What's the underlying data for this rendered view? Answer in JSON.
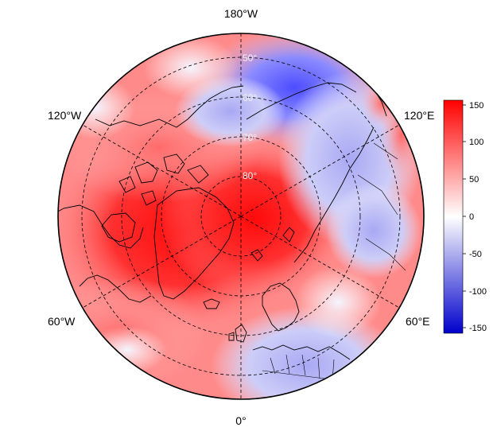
{
  "map": {
    "projection": "north-polar-stereographic",
    "longitude_labels": {
      "top": "180°W",
      "upper_left": "120°W",
      "upper_right": "120°E",
      "lower_left": "60°W",
      "lower_right": "60°E",
      "bottom": "0°"
    },
    "latitude_labels": [
      "50°",
      "60°",
      "70°",
      "80°"
    ],
    "pattern": "anomaly field: strong positive (red) over the Arctic, Greenland, Canada and North Atlantic; negative (blue) over Siberia/Bering region and central-eastern Europe; near-zero (white) transitions",
    "colors": {
      "positive_max": "#ff0000",
      "zero": "#ffffff",
      "negative_max": "#0000cc",
      "coastline": "#000000",
      "graticule": "#000000"
    }
  },
  "colorbar": {
    "min": -160,
    "max": 160,
    "tick_labels": [
      "150",
      "100",
      "50",
      "0",
      "-50",
      "-100",
      "-150"
    ]
  }
}
